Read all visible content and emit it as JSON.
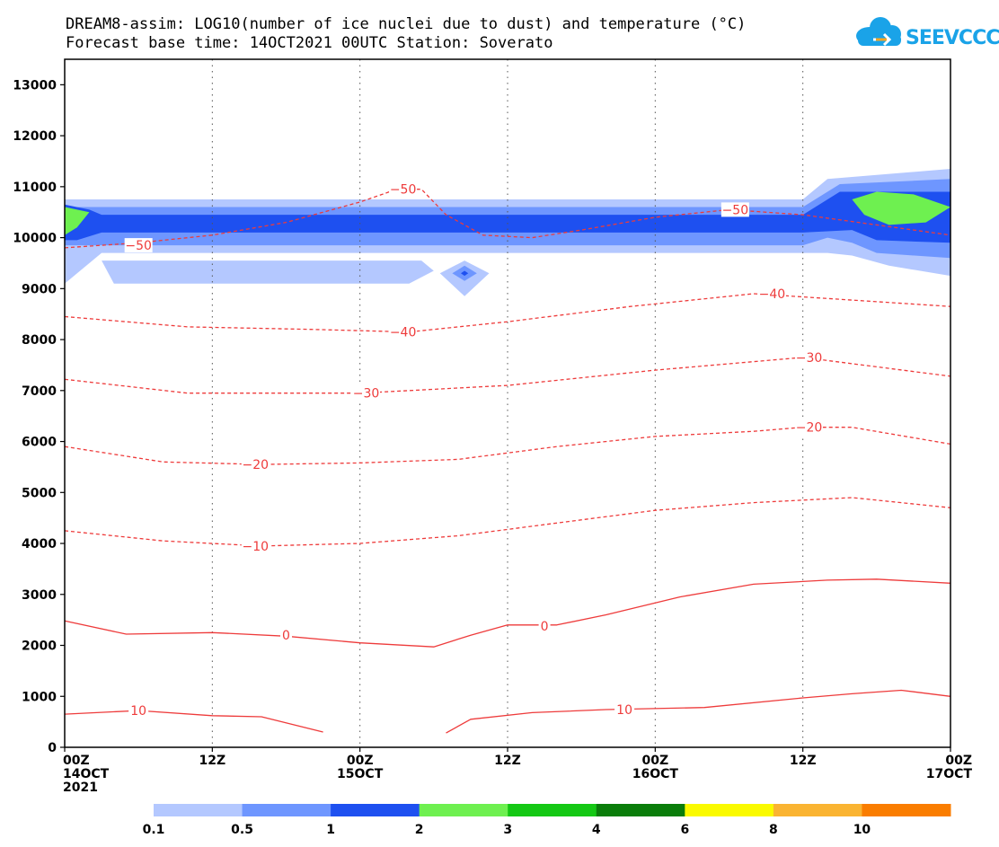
{
  "header": {
    "title_line1": "DREAM8-assim: LOG10(number of ice nuclei due to dust) and temperature (°C)",
    "title_line2": "Forecast base time: 14OCT2021 00UTC   Station: Soverato",
    "logo_text": "SEEVCCC",
    "logo_icon": "cloud-icon"
  },
  "chart_data": {
    "type": "contour",
    "title": "DREAM8-assim: LOG10(number of ice nuclei due to dust) and temperature (°C)",
    "subtitle": "Forecast base time: 14OCT2021 00UTC   Station: Soverato",
    "x_hours_range": [
      0,
      72
    ],
    "ylim": [
      0,
      13500
    ],
    "x_ticks": [
      {
        "hours": 0,
        "lines": [
          "00Z",
          "14OCT",
          "2021"
        ]
      },
      {
        "hours": 12,
        "lines": [
          "12Z"
        ]
      },
      {
        "hours": 24,
        "lines": [
          "00Z",
          "15OCT"
        ]
      },
      {
        "hours": 36,
        "lines": [
          "12Z"
        ]
      },
      {
        "hours": 48,
        "lines": [
          "00Z",
          "16OCT"
        ]
      },
      {
        "hours": 60,
        "lines": [
          "12Z"
        ]
      },
      {
        "hours": 72,
        "lines": [
          "00Z",
          "17OCT"
        ]
      }
    ],
    "y_ticks": [
      0,
      1000,
      2000,
      3000,
      4000,
      5000,
      6000,
      7000,
      8000,
      9000,
      10000,
      11000,
      12000,
      13000
    ],
    "grid": "dotted vertical lines at 12-hour intervals",
    "colorbar": {
      "labels": [
        "0.1",
        "0.5",
        "1",
        "2",
        "3",
        "4",
        "6",
        "8",
        "10"
      ],
      "colors": [
        "#b4c8ff",
        "#6e96ff",
        "#1e50f0",
        "#6ef050",
        "#14c814",
        "#0a7d0a",
        "#fafa00",
        "#fab432",
        "#fa7d00"
      ]
    },
    "shaded_layers": [
      {
        "level": "0.1",
        "color": "#b4c8ff",
        "points": [
          [
            0,
            10750
          ],
          [
            12,
            10750
          ],
          [
            24,
            10750
          ],
          [
            36,
            10750
          ],
          [
            48,
            10750
          ],
          [
            60,
            10750
          ],
          [
            62,
            11150
          ],
          [
            72,
            11350
          ],
          [
            72,
            9250
          ],
          [
            67,
            9450
          ],
          [
            64,
            9650
          ],
          [
            62,
            9700
          ],
          [
            56,
            9700
          ],
          [
            48,
            9700
          ],
          [
            36,
            9700
          ],
          [
            24,
            9700
          ],
          [
            12,
            9700
          ],
          [
            3,
            9700
          ],
          [
            0,
            9100
          ]
        ]
      },
      {
        "level": "0.1",
        "color": "#b4c8ff",
        "points": [
          [
            3,
            9550
          ],
          [
            29,
            9550
          ],
          [
            30,
            9350
          ],
          [
            28,
            9100
          ],
          [
            4,
            9100
          ]
        ]
      },
      {
        "level": "0.1",
        "color": "#b4c8ff",
        "points": [
          [
            30.5,
            9300
          ],
          [
            32.5,
            9550
          ],
          [
            34.5,
            9300
          ],
          [
            32.5,
            8850
          ]
        ]
      },
      {
        "level": "0.5",
        "color": "#6e96ff",
        "points": [
          [
            0,
            10600
          ],
          [
            60,
            10600
          ],
          [
            63,
            11050
          ],
          [
            72,
            11150
          ],
          [
            72,
            9600
          ],
          [
            66,
            9700
          ],
          [
            64,
            9900
          ],
          [
            62,
            10000
          ],
          [
            60,
            9850
          ],
          [
            0,
            9850
          ]
        ]
      },
      {
        "level": "0.5",
        "color": "#6e96ff",
        "points": [
          [
            31.5,
            9300
          ],
          [
            32.5,
            9450
          ],
          [
            33.5,
            9300
          ],
          [
            32.5,
            9150
          ]
        ]
      },
      {
        "level": "1",
        "color": "#1e50f0",
        "points": [
          [
            0,
            10650
          ],
          [
            2,
            10550
          ],
          [
            3,
            10450
          ],
          [
            60,
            10450
          ],
          [
            63,
            10900
          ],
          [
            72,
            10900
          ],
          [
            72,
            9900
          ],
          [
            66,
            9950
          ],
          [
            64,
            10150
          ],
          [
            60,
            10100
          ],
          [
            3,
            10100
          ],
          [
            1,
            9950
          ],
          [
            0,
            9950
          ]
        ]
      },
      {
        "level": "1",
        "color": "#1e50f0",
        "points": [
          [
            32.2,
            9300
          ],
          [
            32.5,
            9350
          ],
          [
            32.8,
            9300
          ],
          [
            32.5,
            9250
          ]
        ]
      },
      {
        "level": "2",
        "color": "#6ef050",
        "points": [
          [
            0,
            10600
          ],
          [
            2,
            10500
          ],
          [
            1,
            10200
          ],
          [
            0,
            10050
          ]
        ]
      },
      {
        "level": "2",
        "color": "#6ef050",
        "points": [
          [
            64,
            10750
          ],
          [
            66,
            10900
          ],
          [
            69,
            10850
          ],
          [
            72,
            10600
          ],
          [
            70,
            10300
          ],
          [
            67,
            10250
          ],
          [
            65,
            10450
          ]
        ]
      }
    ],
    "temperature_contours": [
      {
        "value": 10,
        "style": "solid",
        "points": [
          [
            0,
            650
          ],
          [
            6,
            720
          ],
          [
            12,
            620
          ],
          [
            16,
            600
          ],
          [
            21,
            300
          ]
        ]
      },
      {
        "value": 10,
        "style": "solid",
        "points": [
          [
            31,
            280
          ],
          [
            33,
            550
          ],
          [
            38,
            680
          ],
          [
            44,
            740
          ],
          [
            52,
            780
          ],
          [
            60,
            970
          ],
          [
            64,
            1050
          ],
          [
            68,
            1120
          ],
          [
            72,
            1000
          ]
        ]
      },
      {
        "value": 0,
        "style": "solid",
        "points": [
          [
            0,
            2480
          ],
          [
            5,
            2220
          ],
          [
            12,
            2250
          ],
          [
            18,
            2180
          ],
          [
            24,
            2050
          ],
          [
            30,
            1970
          ],
          [
            33,
            2200
          ],
          [
            36,
            2400
          ],
          [
            40,
            2400
          ],
          [
            44,
            2600
          ],
          [
            50,
            2950
          ],
          [
            56,
            3200
          ],
          [
            62,
            3280
          ],
          [
            66,
            3300
          ],
          [
            72,
            3220
          ]
        ]
      },
      {
        "value": -10,
        "style": "dashed",
        "points": [
          [
            0,
            4250
          ],
          [
            8,
            4050
          ],
          [
            16,
            3950
          ],
          [
            24,
            4000
          ],
          [
            32,
            4150
          ],
          [
            40,
            4400
          ],
          [
            48,
            4650
          ],
          [
            56,
            4800
          ],
          [
            64,
            4900
          ],
          [
            72,
            4700
          ]
        ]
      },
      {
        "value": -20,
        "style": "dashed",
        "points": [
          [
            0,
            5900
          ],
          [
            8,
            5600
          ],
          [
            16,
            5550
          ],
          [
            24,
            5580
          ],
          [
            32,
            5650
          ],
          [
            40,
            5900
          ],
          [
            48,
            6100
          ],
          [
            56,
            6200
          ],
          [
            60,
            6280
          ],
          [
            64,
            6280
          ],
          [
            72,
            5950
          ]
        ]
      },
      {
        "value": -30,
        "style": "dashed",
        "points": [
          [
            0,
            7220
          ],
          [
            10,
            6950
          ],
          [
            24,
            6950
          ],
          [
            36,
            7100
          ],
          [
            48,
            7400
          ],
          [
            60,
            7650
          ],
          [
            72,
            7280
          ]
        ]
      },
      {
        "value": -40,
        "style": "dashed",
        "points": [
          [
            0,
            8450
          ],
          [
            10,
            8250
          ],
          [
            20,
            8200
          ],
          [
            28,
            8150
          ],
          [
            36,
            8350
          ],
          [
            46,
            8650
          ],
          [
            56,
            8900
          ],
          [
            72,
            8650
          ]
        ]
      },
      {
        "value": -50,
        "style": "dashed",
        "points": [
          [
            0,
            9800
          ],
          [
            6,
            9900
          ],
          [
            12,
            10050
          ],
          [
            18,
            10300
          ],
          [
            24,
            10700
          ],
          [
            27,
            10950
          ],
          [
            29,
            10950
          ],
          [
            31,
            10450
          ],
          [
            34,
            10050
          ],
          [
            38,
            10000
          ],
          [
            42,
            10150
          ],
          [
            48,
            10400
          ],
          [
            54,
            10550
          ],
          [
            60,
            10450
          ],
          [
            66,
            10250
          ],
          [
            72,
            10050
          ]
        ]
      }
    ],
    "contour_labels": [
      {
        "text": "10",
        "x": 6,
        "y": 720
      },
      {
        "text": "10",
        "x": 45.5,
        "y": 740
      },
      {
        "text": "0",
        "x": 18,
        "y": 2200
      },
      {
        "text": "0",
        "x": 39,
        "y": 2380
      },
      {
        "text": "-10",
        "x": 15.5,
        "y": 3950
      },
      {
        "text": "-20",
        "x": 15.5,
        "y": 5550
      },
      {
        "text": "-20",
        "x": 60.5,
        "y": 6280
      },
      {
        "text": "-30",
        "x": 24.5,
        "y": 6950
      },
      {
        "text": "-30",
        "x": 60.5,
        "y": 7650
      },
      {
        "text": "-40",
        "x": 27.5,
        "y": 8150
      },
      {
        "text": "-40",
        "x": 57.5,
        "y": 8900
      },
      {
        "text": "-50",
        "x": 6,
        "y": 9850
      },
      {
        "text": "-50",
        "x": 27.5,
        "y": 10950
      },
      {
        "text": "-50",
        "x": 54.5,
        "y": 10550
      }
    ]
  }
}
